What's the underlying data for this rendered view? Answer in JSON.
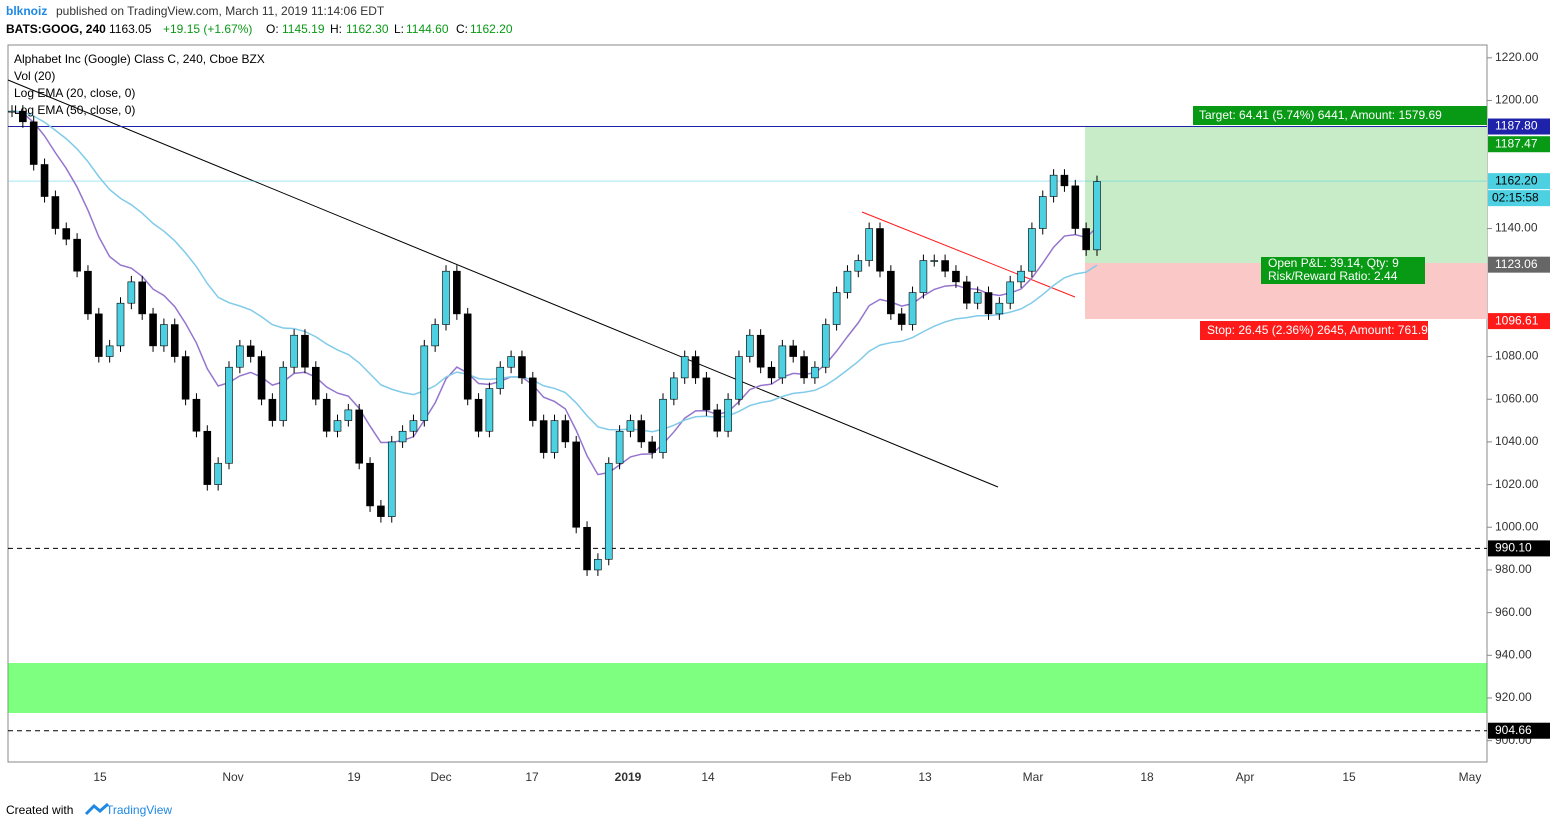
{
  "header": {
    "author": "blknoiz",
    "published": "published on TradingView.com, March 11, 2019 11:14:06 EDT",
    "symbol": "BATS:GOOG, 240",
    "last": "1163.05",
    "change": "+19.15 (+1.67%)",
    "o_label": "O:",
    "o": "1145.19",
    "h_label": "H:",
    "h": "1162.30",
    "l_label": "L:",
    "l": "1144.60",
    "c_label": "C:",
    "c": "1162.20"
  },
  "legend": {
    "name": "Alphabet Inc (Google) Class C, 240, Cboe BZX",
    "vol": "Vol (20)",
    "ema20": "Log EMA (20, close, 0)",
    "ema50": "Log EMA (50, close, 0)"
  },
  "footer": {
    "created": "Created with",
    "brand": "TradingView"
  },
  "chart_data": {
    "type": "candlestick",
    "closes": [
      1195,
      1190,
      1170,
      1155,
      1140,
      1135,
      1120,
      1100,
      1080,
      1085,
      1105,
      1115,
      1100,
      1085,
      1095,
      1080,
      1060,
      1045,
      1020,
      1030,
      1075,
      1085,
      1080,
      1060,
      1050,
      1075,
      1090,
      1075,
      1060,
      1045,
      1050,
      1055,
      1030,
      1010,
      1005,
      1040,
      1045,
      1050,
      1085,
      1095,
      1120,
      1100,
      1060,
      1045,
      1065,
      1075,
      1080,
      1070,
      1050,
      1035,
      1050,
      1040,
      1000,
      980,
      985,
      1030,
      1045,
      1050,
      1040,
      1035,
      1060,
      1070,
      1080,
      1070,
      1055,
      1045,
      1060,
      1080,
      1090,
      1075,
      1070,
      1085,
      1080,
      1070,
      1075,
      1095,
      1110,
      1120,
      1125,
      1140,
      1120,
      1100,
      1095,
      1110,
      1125,
      1125,
      1120,
      1115,
      1105,
      1110,
      1100,
      1105,
      1115,
      1120,
      1140,
      1155,
      1165,
      1160,
      1140,
      1130,
      1162
    ],
    "up_color": "#4dd0e1",
    "down_color": "#000000",
    "ylim": [
      890,
      1226
    ],
    "yticks": [
      {
        "value": 1220,
        "label": "1220.00"
      },
      {
        "value": 1200,
        "label": "1200.00"
      },
      {
        "value": 1140,
        "label": "1140.00"
      },
      {
        "value": 1080,
        "label": "1080.00"
      },
      {
        "value": 1060,
        "label": "1060.00"
      },
      {
        "value": 1040,
        "label": "1040.00"
      },
      {
        "value": 1020,
        "label": "1020.00"
      },
      {
        "value": 1000,
        "label": "1000.00"
      },
      {
        "value": 980,
        "label": "980.00"
      },
      {
        "value": 960,
        "label": "960.00"
      },
      {
        "value": 940,
        "label": "940.00"
      },
      {
        "value": 920,
        "label": "920.00"
      },
      {
        "value": 900,
        "label": "900.00"
      }
    ],
    "xlabels": [
      "15",
      "Nov",
      "19",
      "Dec",
      "17",
      "2019",
      "14",
      "Feb",
      "13",
      "Mar",
      "18",
      "Apr",
      "15",
      "May"
    ],
    "levels": [
      {
        "value": 1187.8,
        "label": "1187.80",
        "color": "#1e22aa"
      },
      {
        "value": 1187.47,
        "label": "1187.47",
        "color": "#089a14"
      },
      {
        "value": 1162.2,
        "label": "1162.20",
        "color": "#4dd0e1"
      },
      {
        "value": 1123.06,
        "label": "1123.06",
        "color": "#666666"
      },
      {
        "value": 1096.61,
        "label": "1096.61",
        "color": "#ff1a1a"
      },
      {
        "value": 990.1,
        "label": "990.10",
        "color": "#000000"
      },
      {
        "value": 904.66,
        "label": "904.66",
        "color": "#000000"
      }
    ],
    "countdown": "02:15:58",
    "target": "Target: 64.41 (5.74%) 6441, Amount: 1579.69",
    "stop": "Stop: 26.45 (2.36%) 2645, Amount: 761.95",
    "pnl": "Open P&L: 39.14, Qty: 9",
    "rr": "Risk/Reward Ratio: 2.44"
  }
}
